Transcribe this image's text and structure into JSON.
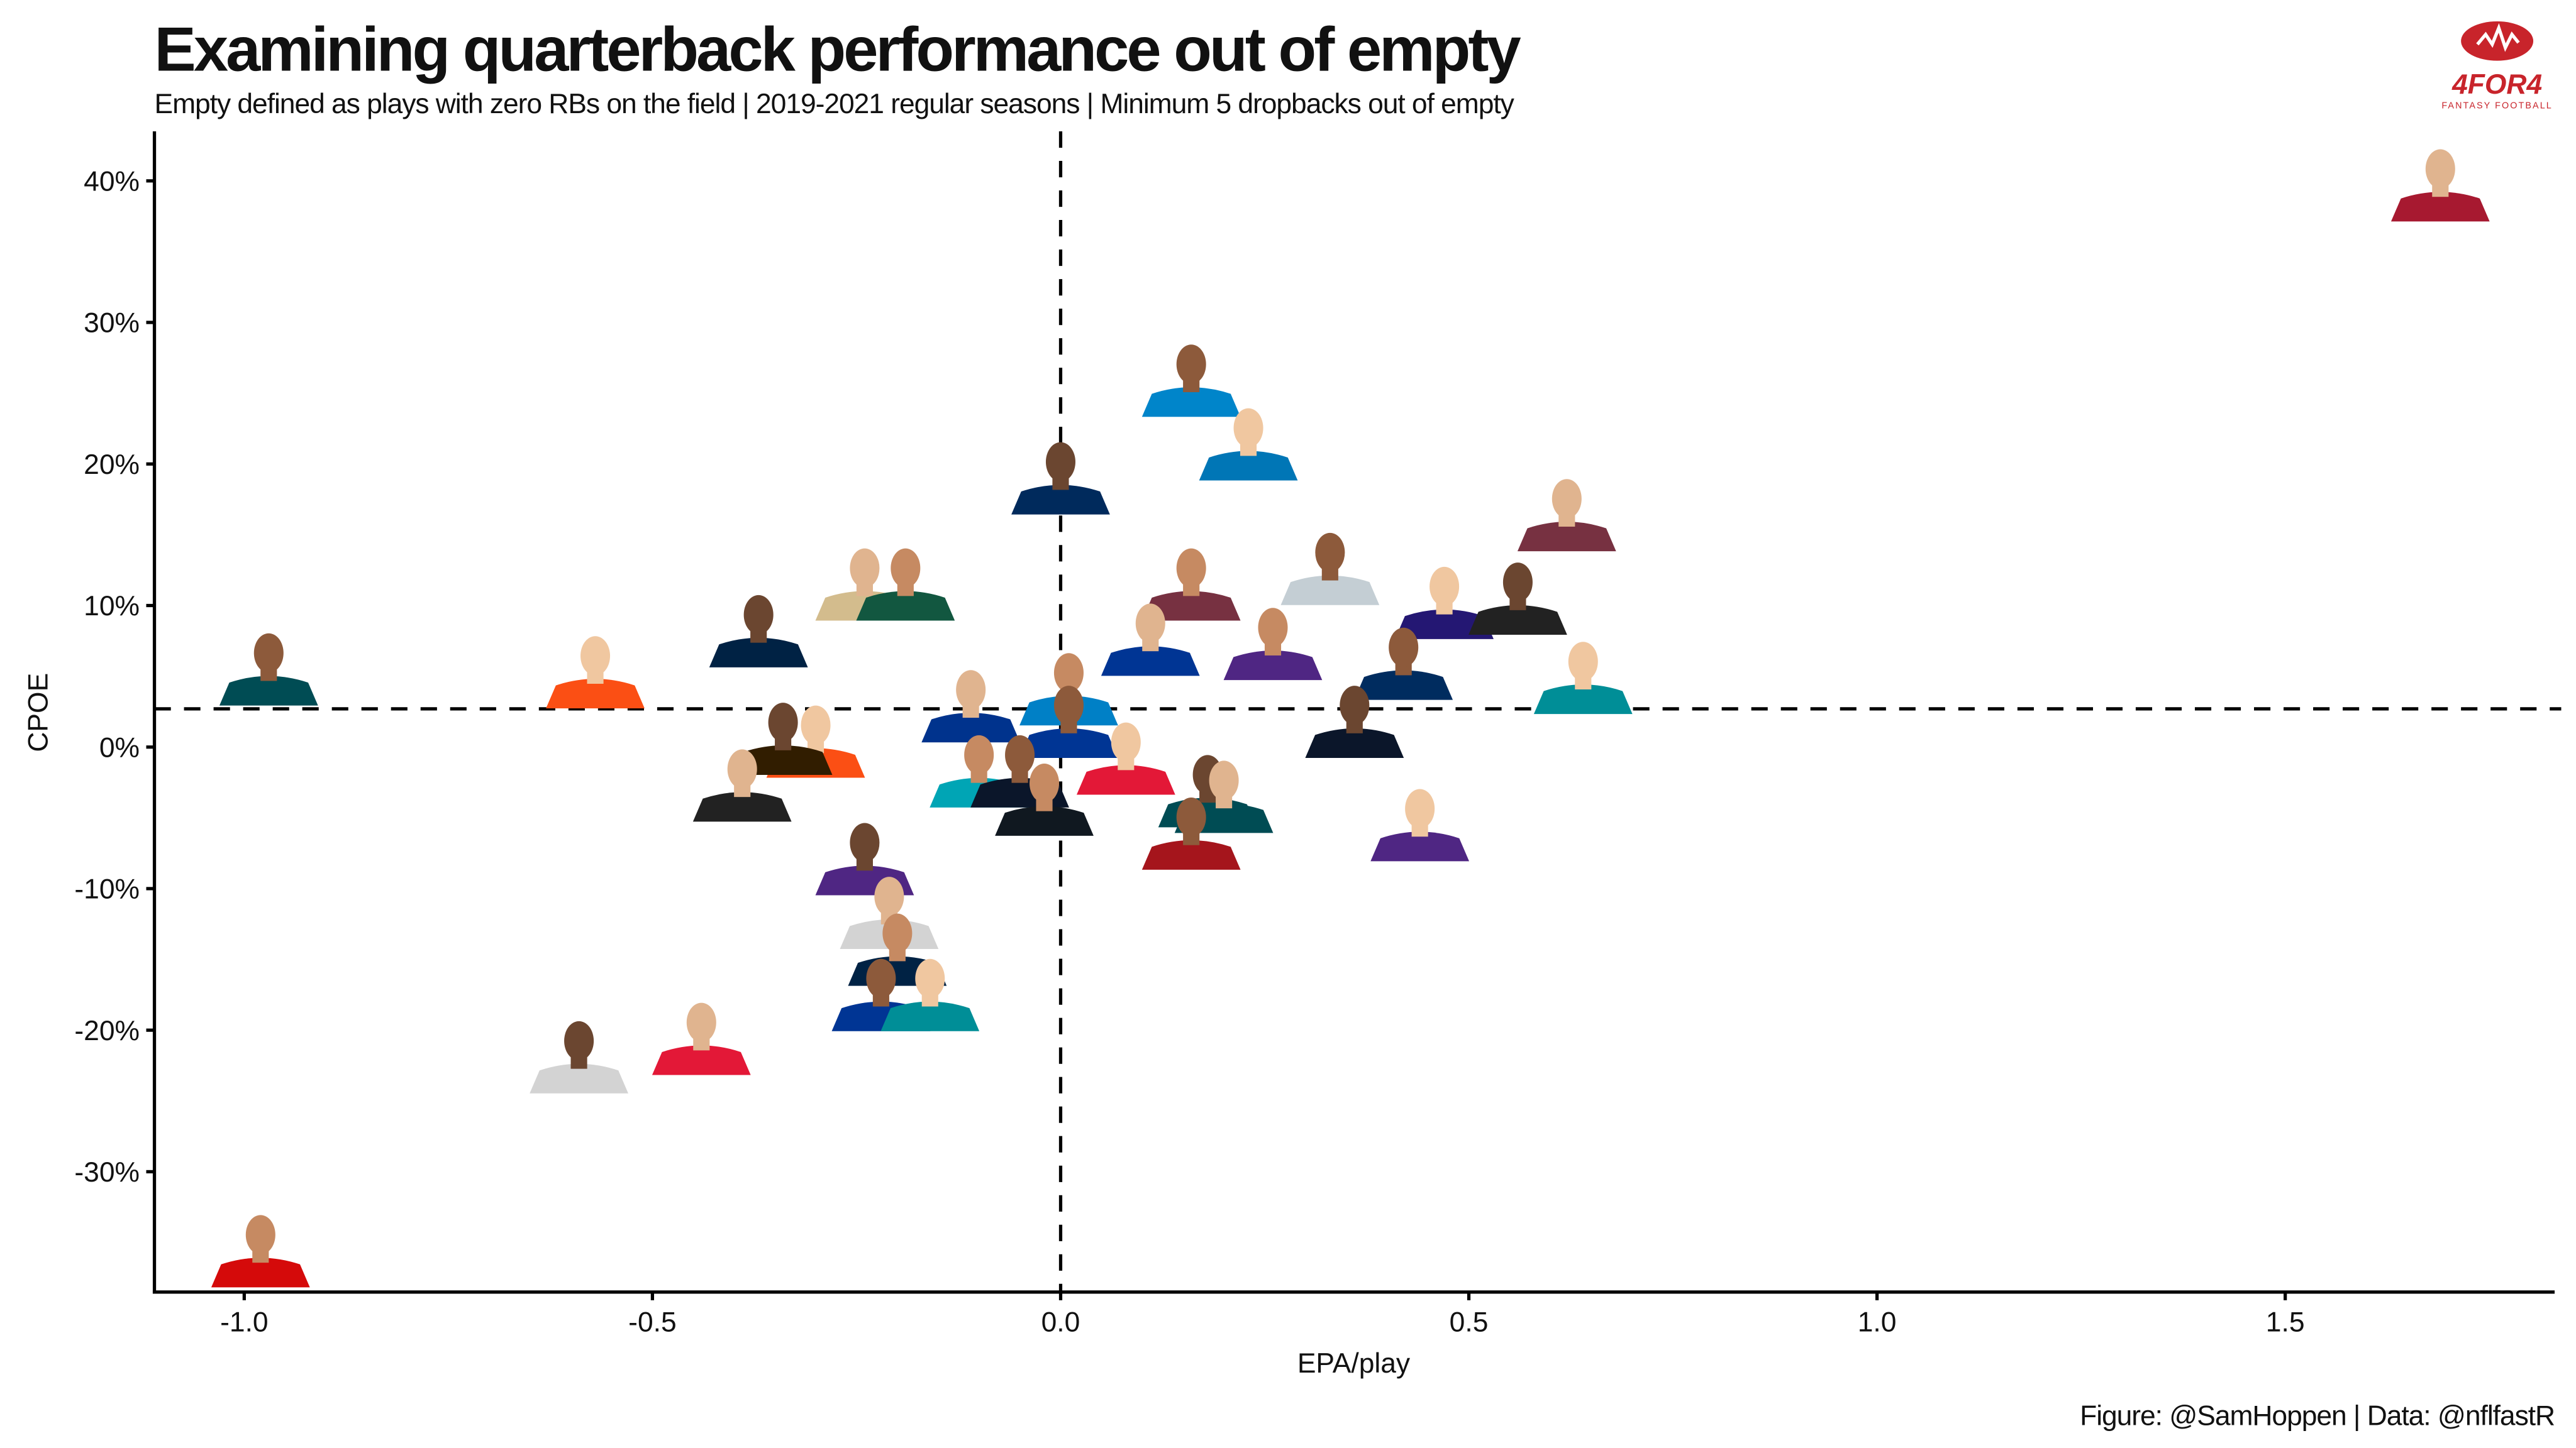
{
  "header": {
    "title": "Examining quarterback performance out of empty",
    "subtitle": "Empty defined as plays with zero RBs on the field | 2019-2021 regular seasons | Minimum 5 dropbacks out of empty"
  },
  "logo": {
    "text": "4FOR4",
    "tagline": "FANTASY FOOTBALL",
    "color": "#c8242b"
  },
  "caption": "Figure: @SamHoppen | Data: @nflfastR",
  "chart_data": {
    "type": "scatter",
    "title": "Examining quarterback performance out of empty",
    "xlabel": "EPA/play",
    "ylabel": "CPOE",
    "xlim": [
      -1.11,
      1.83
    ],
    "ylim": [
      -38.5,
      43.5
    ],
    "x_ticks": [
      -1.0,
      -0.5,
      0.0,
      0.5,
      1.0,
      1.5
    ],
    "x_tick_labels": [
      "-1.0",
      "-0.5",
      "0.0",
      "0.5",
      "1.0",
      "1.5"
    ],
    "y_ticks": [
      40,
      30,
      20,
      10,
      0,
      -10,
      -20,
      -30
    ],
    "y_tick_labels": [
      "40%",
      "30%",
      "20%",
      "10%",
      "0%",
      "-10%",
      "-20%",
      "-30%"
    ],
    "grid": false,
    "reference_lines": {
      "x_mean": 0.0,
      "y_mean": 2.7
    },
    "marker": "player headshot",
    "points": [
      {
        "x": 1.69,
        "y": 39.8,
        "color": "#a71930"
      },
      {
        "x": -0.98,
        "y": -35.5,
        "color": "#d50a0a"
      },
      {
        "x": -0.97,
        "y": 5.6,
        "color": "#004c54"
      },
      {
        "x": -0.57,
        "y": 5.4,
        "color": "#fb4f14"
      },
      {
        "x": -0.37,
        "y": 8.3,
        "color": "#002244"
      },
      {
        "x": -0.24,
        "y": 11.6,
        "color": "#d3bc8d"
      },
      {
        "x": -0.19,
        "y": 11.6,
        "color": "#125740"
      },
      {
        "x": 0.16,
        "y": 26.0,
        "color": "#0085ca"
      },
      {
        "x": 0.23,
        "y": 21.5,
        "color": "#0076b6"
      },
      {
        "x": 0.0,
        "y": 19.1,
        "color": "#002a5c"
      },
      {
        "x": 0.62,
        "y": 16.5,
        "color": "#773141"
      },
      {
        "x": 0.16,
        "y": 11.6,
        "color": "#773141"
      },
      {
        "x": 0.33,
        "y": 12.7,
        "color": "#c4ced4"
      },
      {
        "x": 0.47,
        "y": 10.3,
        "color": "#241773"
      },
      {
        "x": 0.56,
        "y": 10.6,
        "color": "#222222"
      },
      {
        "x": 0.11,
        "y": 7.7,
        "color": "#003594"
      },
      {
        "x": 0.26,
        "y": 7.4,
        "color": "#4f2683"
      },
      {
        "x": 0.42,
        "y": 6.0,
        "color": "#002c5f"
      },
      {
        "x": 0.64,
        "y": 5.0,
        "color": "#008e97"
      },
      {
        "x": 0.36,
        "y": 1.9,
        "color": "#0b162a"
      },
      {
        "x": -0.11,
        "y": 3.0,
        "color": "#00338d"
      },
      {
        "x": 0.01,
        "y": 4.2,
        "color": "#0080c6"
      },
      {
        "x": 0.01,
        "y": 1.9,
        "color": "#003594"
      },
      {
        "x": -0.3,
        "y": 0.5,
        "color": "#fb4f14"
      },
      {
        "x": -0.34,
        "y": 0.7,
        "color": "#311d00"
      },
      {
        "x": -0.39,
        "y": -2.6,
        "color": "#222222"
      },
      {
        "x": -0.1,
        "y": -1.6,
        "color": "#00a5b5"
      },
      {
        "x": -0.05,
        "y": -1.6,
        "color": "#0b162a"
      },
      {
        "x": 0.08,
        "y": -0.7,
        "color": "#e31837"
      },
      {
        "x": 0.18,
        "y": -3.0,
        "color": "#004c54"
      },
      {
        "x": 0.2,
        "y": -3.4,
        "color": "#004c54"
      },
      {
        "x": -0.02,
        "y": -3.6,
        "color": "#101820"
      },
      {
        "x": 0.16,
        "y": -6.0,
        "color": "#a5151c"
      },
      {
        "x": 0.44,
        "y": -5.4,
        "color": "#4f2683"
      },
      {
        "x": -0.24,
        "y": -7.8,
        "color": "#4f2683"
      },
      {
        "x": -0.21,
        "y": -11.6,
        "color": "#d3d3d3"
      },
      {
        "x": -0.2,
        "y": -14.2,
        "color": "#002244"
      },
      {
        "x": -0.22,
        "y": -17.4,
        "color": "#003594"
      },
      {
        "x": -0.16,
        "y": -17.4,
        "color": "#008e97"
      },
      {
        "x": -0.59,
        "y": -21.8,
        "color": "#d3d3d3"
      },
      {
        "x": -0.44,
        "y": -20.5,
        "color": "#e31837"
      }
    ]
  }
}
